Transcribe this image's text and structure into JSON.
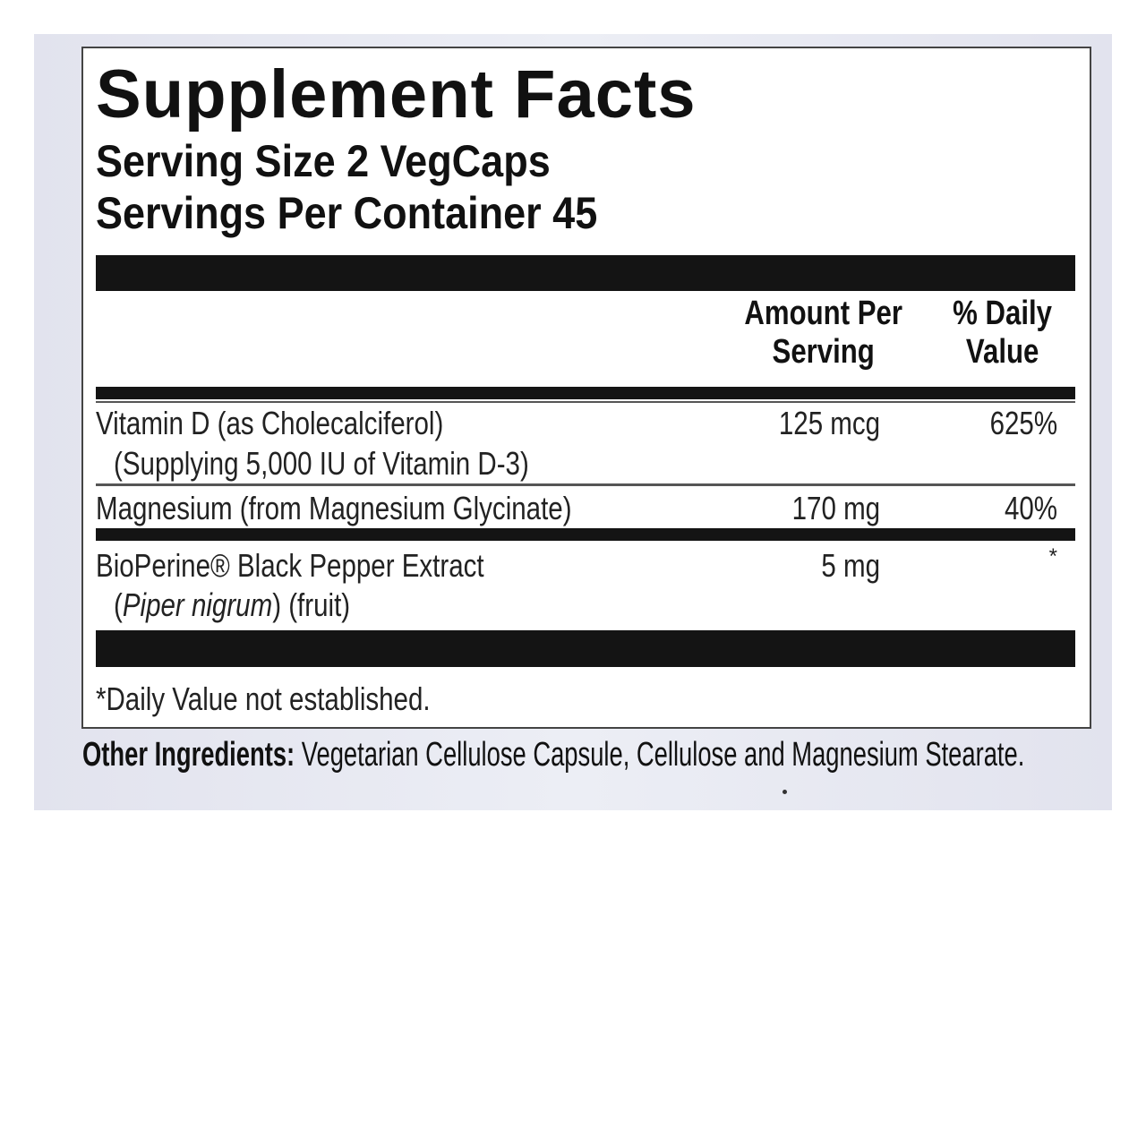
{
  "label": {
    "title": "Supplement Facts",
    "serving_size": "Serving Size 2 VegCaps",
    "servings_per_container": "Servings Per Container 45",
    "columns": {
      "amount_line1": "Amount Per",
      "amount_line2": "Serving",
      "dv_line1": "% Daily",
      "dv_line2": "Value"
    },
    "rows": [
      {
        "name": "Vitamin D (as Cholecalciferol)",
        "detail": "(Supplying 5,000 IU of Vitamin D-3)",
        "amount": "125 mcg",
        "dv": "625%"
      },
      {
        "name": "Magnesium (from Magnesium Glycinate)",
        "amount": "170 mg",
        "dv": "40%"
      },
      {
        "name": "BioPerine® Black Pepper Extract",
        "detail_italic": "Piper nigrum",
        "detail_rest": ") (fruit)",
        "detail_open": "(",
        "amount": "5 mg",
        "dv": "*"
      }
    ],
    "footnote": "*Daily Value not established."
  },
  "other_ingredients": {
    "label": "Other Ingredients:",
    "text": " Vegetarian Cellulose Capsule, Cellulose and Magnesium Stearate."
  }
}
